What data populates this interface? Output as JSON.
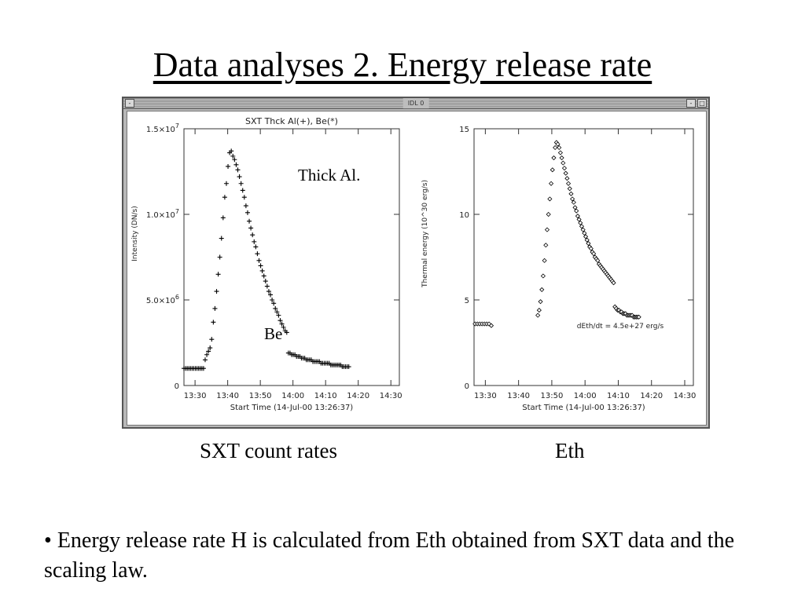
{
  "slide": {
    "title": "Data analyses 2. Energy release rate",
    "window_title": "IDL 0",
    "caption_left": "SXT count rates",
    "caption_right": "Eth",
    "bullet_marker": "•",
    "bullet": "Energy release rate H is calculated from Eth obtained from SXT data and the scaling law."
  },
  "annotations": {
    "thick_al": "Thick Al.",
    "be": "Be"
  },
  "chart_data": [
    {
      "type": "scatter",
      "title": "SXT Thck Al(+), Be(*)",
      "xlabel": "Start Time (14-Jul-00 13:26:37)",
      "ylabel": "Intensity (DN/s)",
      "ylabel_parts": [
        "Intensity",
        "(DN/s)"
      ],
      "x_unit": "minutes after 13:26:37",
      "xlim": [
        0,
        66
      ],
      "ylim": [
        0,
        15000000
      ],
      "xticks": [
        3.4,
        13.4,
        23.4,
        33.4,
        43.4,
        53.4,
        63.4
      ],
      "xtick_labels": [
        "13:30",
        "13:40",
        "13:50",
        "14:00",
        "14:10",
        "14:20",
        "14:30"
      ],
      "yticks": [
        0,
        5000000,
        10000000,
        15000000
      ],
      "ytick_labels": [
        {
          "mant": "0",
          "exp": ""
        },
        {
          "mant": "5.0×10",
          "exp": "6"
        },
        {
          "mant": "1.0×10",
          "exp": "7"
        },
        {
          "mant": "1.5×10",
          "exp": "7"
        }
      ],
      "grid": false,
      "series": [
        {
          "name": "Thick Al.",
          "marker": "+",
          "segments": [
            {
              "x": [
                0,
                0.5,
                1,
                1.5,
                2,
                2.5,
                3,
                3.5,
                4,
                4.5,
                5,
                5.5,
                6,
                6.5,
                7,
                7.5,
                8,
                8.5,
                9,
                9.5,
                10,
                10.5,
                11,
                11.5,
                12,
                12.5,
                13,
                13.5,
                14,
                14.5,
                15,
                15.5,
                16,
                16.5,
                17,
                17.5,
                18,
                18.5,
                19,
                19.5,
                20,
                20.5,
                21,
                21.5,
                22,
                22.5,
                23,
                23.5,
                24,
                24.5,
                25,
                25.5,
                26,
                26.5,
                27,
                27.5,
                28,
                28.5,
                29,
                29.5,
                30,
                30.5,
                31,
                31.5,
                32,
                32.5,
                33,
                33.5,
                34,
                34.5,
                35,
                35.5,
                36,
                36.5,
                37,
                37.5,
                38,
                38.5,
                39,
                39.5,
                40,
                40.5,
                41,
                41.5,
                42,
                42.5,
                43,
                43.5,
                44,
                44.5,
                45,
                45.5,
                46,
                46.5,
                47,
                47.5,
                48,
                48.5,
                49,
                49.5,
                50,
                50.5
              ],
              "y": [
                1000000,
                1000000,
                1000000,
                1000000,
                1000000,
                1000000,
                1000000,
                1000000,
                1000000,
                1000000,
                1000000,
                1000000,
                1000000,
                1500000,
                1800000,
                2000000,
                2200000,
                2700000,
                3700000,
                4500000,
                5500000,
                6500000,
                7500000,
                8600000,
                9800000,
                11000000,
                11800000,
                12800000,
                13600000,
                13700000,
                13400000,
                13200000,
                12900000,
                12600000,
                12200000,
                11800000,
                11400000,
                11000000,
                10500000,
                10100000,
                9600000,
                9200000,
                8800000,
                8400000,
                8100000,
                7700000,
                7300000,
                7000000,
                6700000,
                6400000,
                6100000,
                5800000,
                5500000,
                5300000,
                5000000,
                4800000,
                4500000,
                4300000,
                4100000,
                3800000,
                3600000,
                3400000,
                3200000,
                3100000,
                1900000,
                1900000,
                1800000,
                1800000,
                1800000,
                1700000,
                1700000,
                1700000,
                1600000,
                1600000,
                1600000,
                1500000,
                1500000,
                1500000,
                1500000,
                1400000,
                1400000,
                1400000,
                1400000,
                1400000,
                1300000,
                1300000,
                1300000,
                1300000,
                1300000,
                1300000,
                1200000,
                1200000,
                1200000,
                1200000,
                1200000,
                1200000,
                1200000,
                1100000,
                1100000,
                1100000,
                1100000,
                1100000
              ]
            }
          ]
        }
      ]
    },
    {
      "type": "scatter",
      "xlabel": "Start Time (14-Jul-00 13:26:37)",
      "ylabel": "Thermal energy (10^30 erg/s)",
      "ylabel_parts": [
        "Thermal",
        "energy",
        "(10^30",
        "erg/s)"
      ],
      "x_unit": "minutes after 13:26:37",
      "xlim": [
        0,
        66
      ],
      "ylim": [
        0,
        15
      ],
      "xticks": [
        3.4,
        13.4,
        23.4,
        33.4,
        43.4,
        53.4,
        63.4
      ],
      "xtick_labels": [
        "13:30",
        "13:40",
        "13:50",
        "14:00",
        "14:10",
        "14:20",
        "14:30"
      ],
      "yticks": [
        0,
        5,
        10,
        15
      ],
      "ytick_labels": [
        "0",
        "5",
        "10",
        "15"
      ],
      "grid": false,
      "annotation": "dEth/dt = 4.5e+27 erg/s",
      "series": [
        {
          "marker": "diamond",
          "segments": [
            {
              "x": [
                0.3,
                1,
                1.7,
                2.4,
                3.1,
                3.8,
                4.5,
                5.2
              ],
              "y": [
                3.6,
                3.6,
                3.6,
                3.6,
                3.6,
                3.6,
                3.6,
                3.5
              ]
            },
            {
              "x": [
                19.2,
                19.6,
                20,
                20.4,
                20.8,
                21.2,
                21.6,
                22,
                22.4,
                22.8,
                23.2,
                23.6,
                24,
                24.4,
                24.8,
                25.2,
                25.6,
                26,
                26.4,
                26.8,
                27.2,
                27.6,
                28,
                28.4,
                28.8,
                29.2,
                29.6,
                30,
                30.4,
                30.8,
                31.2,
                31.6,
                32,
                32.4,
                32.8,
                33.2,
                33.6,
                34,
                34.4,
                34.8,
                35.2,
                35.6,
                36,
                36.4,
                36.8,
                37.2,
                37.6,
                38,
                38.4,
                38.8,
                39.2,
                39.6,
                40,
                40.4,
                40.8,
                41.2,
                41.6,
                42,
                42.4,
                42.8,
                43.2,
                43.6,
                44,
                44.4,
                44.8,
                45.2,
                45.6,
                46,
                46.4,
                46.8,
                47.2,
                47.6,
                48,
                48.4,
                48.8,
                49.2,
                49.6
              ],
              "y": [
                4.1,
                4.4,
                4.9,
                5.6,
                6.4,
                7.3,
                8.2,
                9.1,
                10,
                10.9,
                11.8,
                12.6,
                13.3,
                13.9,
                14.2,
                14.1,
                13.9,
                13.6,
                13.3,
                13,
                12.7,
                12.4,
                12.1,
                11.8,
                11.5,
                11.2,
                10.9,
                10.7,
                10.4,
                10.2,
                9.9,
                9.7,
                9.5,
                9.3,
                9.1,
                8.9,
                8.7,
                8.5,
                8.3,
                8.1,
                8,
                7.8,
                7.7,
                7.5,
                7.4,
                7.3,
                7.1,
                7,
                6.9,
                6.8,
                6.7,
                6.6,
                6.5,
                6.4,
                6.3,
                6.2,
                6.1,
                6,
                4.6,
                4.5,
                4.4,
                4.4,
                4.3,
                4.3,
                4.2,
                4.2,
                4.2,
                4.1,
                4.1,
                4.1,
                4.1,
                4.1,
                4,
                4,
                4,
                4,
                4
              ]
            }
          ]
        }
      ]
    }
  ]
}
